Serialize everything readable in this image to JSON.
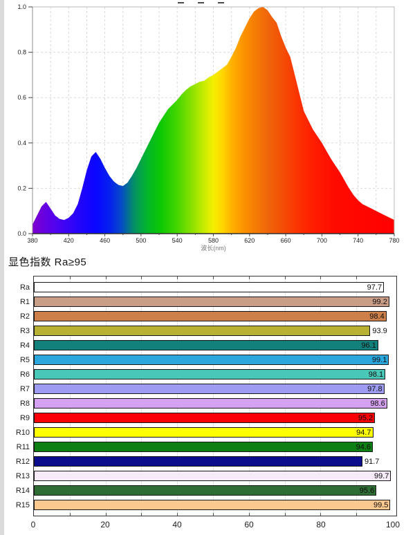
{
  "cri_heading": "显色指数 Ra≥95",
  "chart_data": [
    {
      "type": "area",
      "title": "",
      "xlabel": "波长(nm)",
      "ylabel": "",
      "xlim": [
        380,
        780
      ],
      "ylim": [
        0,
        1
      ],
      "grid": true,
      "x_ticks": [
        "380",
        "420",
        "460",
        "500",
        "540",
        "580",
        "620",
        "660",
        "700",
        "740",
        "780"
      ],
      "y_ticks": [
        "1.0",
        "0.8",
        "0.6",
        "0.4",
        "0.2",
        "0.0"
      ],
      "series": [
        {
          "name": "relative-spectral-power",
          "points": [
            [
              380,
              0.04
            ],
            [
              385,
              0.08
            ],
            [
              390,
              0.12
            ],
            [
              395,
              0.14
            ],
            [
              400,
              0.11
            ],
            [
              405,
              0.08
            ],
            [
              410,
              0.065
            ],
            [
              415,
              0.06
            ],
            [
              420,
              0.07
            ],
            [
              425,
              0.09
            ],
            [
              430,
              0.13
            ],
            [
              435,
              0.2
            ],
            [
              440,
              0.28
            ],
            [
              445,
              0.34
            ],
            [
              450,
              0.36
            ],
            [
              455,
              0.33
            ],
            [
              460,
              0.29
            ],
            [
              465,
              0.255
            ],
            [
              470,
              0.23
            ],
            [
              475,
              0.215
            ],
            [
              480,
              0.21
            ],
            [
              485,
              0.225
            ],
            [
              490,
              0.255
            ],
            [
              495,
              0.29
            ],
            [
              500,
              0.33
            ],
            [
              505,
              0.37
            ],
            [
              510,
              0.41
            ],
            [
              515,
              0.45
            ],
            [
              520,
              0.49
            ],
            [
              525,
              0.52
            ],
            [
              530,
              0.55
            ],
            [
              535,
              0.57
            ],
            [
              540,
              0.59
            ],
            [
              545,
              0.615
            ],
            [
              550,
              0.635
            ],
            [
              555,
              0.65
            ],
            [
              560,
              0.66
            ],
            [
              565,
              0.67
            ],
            [
              570,
              0.675
            ],
            [
              575,
              0.69
            ],
            [
              580,
              0.7
            ],
            [
              585,
              0.715
            ],
            [
              590,
              0.73
            ],
            [
              595,
              0.745
            ],
            [
              600,
              0.78
            ],
            [
              605,
              0.82
            ],
            [
              610,
              0.87
            ],
            [
              615,
              0.91
            ],
            [
              620,
              0.95
            ],
            [
              625,
              0.98
            ],
            [
              630,
              0.995
            ],
            [
              635,
              1.0
            ],
            [
              640,
              0.985
            ],
            [
              645,
              0.955
            ],
            [
              650,
              0.93
            ],
            [
              655,
              0.87
            ],
            [
              660,
              0.82
            ],
            [
              665,
              0.78
            ],
            [
              670,
              0.7
            ],
            [
              675,
              0.62
            ],
            [
              680,
              0.54
            ],
            [
              685,
              0.5
            ],
            [
              690,
              0.46
            ],
            [
              695,
              0.43
            ],
            [
              700,
              0.4
            ],
            [
              705,
              0.365
            ],
            [
              710,
              0.33
            ],
            [
              715,
              0.3
            ],
            [
              720,
              0.27
            ],
            [
              725,
              0.235
            ],
            [
              730,
              0.2
            ],
            [
              735,
              0.17
            ],
            [
              740,
              0.147
            ],
            [
              745,
              0.13
            ],
            [
              750,
              0.12
            ],
            [
              755,
              0.11
            ],
            [
              760,
              0.1
            ],
            [
              765,
              0.09
            ],
            [
              770,
              0.08
            ],
            [
              775,
              0.07
            ],
            [
              780,
              0.06
            ]
          ]
        }
      ],
      "gradient_stops": [
        {
          "wavelength": 380,
          "color": "#7d00cf"
        },
        {
          "wavelength": 405,
          "color": "#5203ef"
        },
        {
          "wavelength": 430,
          "color": "#2604fb"
        },
        {
          "wavelength": 450,
          "color": "#0a06ff"
        },
        {
          "wavelength": 465,
          "color": "#0520f0"
        },
        {
          "wavelength": 478,
          "color": "#0549c8"
        },
        {
          "wavelength": 492,
          "color": "#049067"
        },
        {
          "wavelength": 506,
          "color": "#03b42c"
        },
        {
          "wavelength": 522,
          "color": "#0cc804"
        },
        {
          "wavelength": 540,
          "color": "#45d600"
        },
        {
          "wavelength": 556,
          "color": "#8ae200"
        },
        {
          "wavelength": 570,
          "color": "#c8ec00"
        },
        {
          "wavelength": 580,
          "color": "#f5ef00"
        },
        {
          "wavelength": 590,
          "color": "#ffd700"
        },
        {
          "wavelength": 600,
          "color": "#ffb200"
        },
        {
          "wavelength": 612,
          "color": "#fc9500"
        },
        {
          "wavelength": 626,
          "color": "#f67d05"
        },
        {
          "wavelength": 640,
          "color": "#f0660a"
        },
        {
          "wavelength": 655,
          "color": "#f25106"
        },
        {
          "wavelength": 672,
          "color": "#fb3502"
        },
        {
          "wavelength": 690,
          "color": "#ff1d00"
        },
        {
          "wavelength": 715,
          "color": "#ff0b00"
        },
        {
          "wavelength": 780,
          "color": "#ff0000"
        }
      ]
    },
    {
      "type": "bar",
      "orientation": "horizontal",
      "title": "",
      "xlim": [
        0,
        100
      ],
      "grid_step": 10,
      "x_ticks": [
        0,
        20,
        40,
        60,
        80,
        100
      ],
      "bars": [
        {
          "label": "Ra",
          "value": 97.7,
          "color": "#ffffff",
          "value_outside": false
        },
        {
          "label": "R1",
          "value": 99.2,
          "color": "#c99e87",
          "value_outside": false
        },
        {
          "label": "R2",
          "value": 98.4,
          "color": "#cd8049",
          "value_outside": false
        },
        {
          "label": "R3",
          "value": 93.9,
          "color": "#b8b233",
          "value_outside": true
        },
        {
          "label": "R4",
          "value": 96.1,
          "color": "#13817b",
          "value_outside": false
        },
        {
          "label": "R5",
          "value": 99.1,
          "color": "#2ba7de",
          "value_outside": false
        },
        {
          "label": "R6",
          "value": 98.1,
          "color": "#49c7b7",
          "value_outside": false
        },
        {
          "label": "R7",
          "value": 97.8,
          "color": "#9e9bf2",
          "value_outside": false
        },
        {
          "label": "R8",
          "value": 98.6,
          "color": "#d5a2f2",
          "value_outside": false
        },
        {
          "label": "R9",
          "value": 95.2,
          "color": "#fb0007",
          "value_outside": false
        },
        {
          "label": "R10",
          "value": 94.7,
          "color": "#fdfe02",
          "value_outside": false
        },
        {
          "label": "R11",
          "value": 94.6,
          "color": "#0e7f13",
          "value_outside": false
        },
        {
          "label": "R12",
          "value": 91.7,
          "color": "#0c0d8d",
          "value_outside": true
        },
        {
          "label": "R13",
          "value": 99.7,
          "color": "#f7ebfa",
          "value_outside": false
        },
        {
          "label": "R14",
          "value": 95.6,
          "color": "#2e6d34",
          "value_outside": false
        },
        {
          "label": "R15",
          "value": 99.5,
          "color": "#fbc98f",
          "value_outside": false
        }
      ]
    }
  ]
}
